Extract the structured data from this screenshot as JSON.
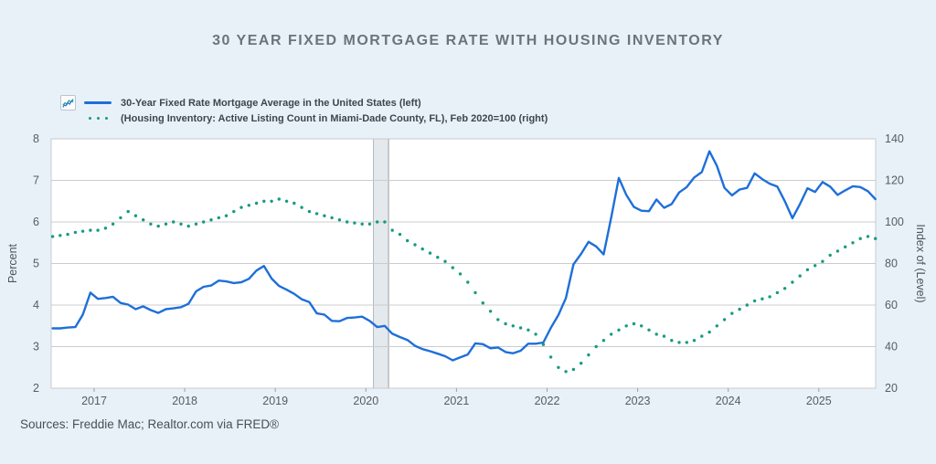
{
  "page": {
    "background": "#e9f1f8",
    "plot_background": "#ffffff"
  },
  "header": {
    "title": "30 YEAR FIXED MORTGAGE RATE WITH HOUSING INVENTORY"
  },
  "legend": {
    "icon": "mini-chart-icon",
    "items": [
      {
        "label": "30-Year Fixed Rate Mortgage Average in the United States (left)",
        "color": "#1e6fd9",
        "style": "solid-line"
      },
      {
        "label": "(Housing Inventory: Active Listing Count in Miami-Dade County, FL), Feb 2020=100 (right)",
        "color": "#169b80",
        "style": "dotted-line"
      }
    ]
  },
  "footer": {
    "sources": "Sources: Freddie Mac; Realtor.com via FRED®"
  },
  "chart_data": {
    "type": "line",
    "title": "30 Year Fixed Mortgage Rate with Housing Inventory",
    "grid_on": true,
    "grid_color": "#cccccc",
    "border_color": "#c7cbd0",
    "tick_text_color": "#545d64",
    "axis_title_color": "#4a5560",
    "x_start_year_fraction": 2016.5417,
    "x_step_years": 0.0833333,
    "x_tick_labels": [
      "2017",
      "2018",
      "2019",
      "2020",
      "2021",
      "2022",
      "2023",
      "2024",
      "2025"
    ],
    "left_axis": {
      "label": "Percent",
      "min": 2,
      "max": 8,
      "ticks": [
        8,
        7,
        6,
        5,
        4,
        3,
        2
      ]
    },
    "right_axis": {
      "label": "Index of (Level)",
      "min": 20,
      "max": 140,
      "ticks": [
        140,
        120,
        100,
        80,
        60,
        40,
        20
      ]
    },
    "recession_band": {
      "from": 2020.083,
      "to": 2020.25,
      "fill": "#e4e9ed",
      "border": "#b2b8be",
      "note": "Feb-Mar 2020 recession shading"
    },
    "series": [
      {
        "name": "30-Year Fixed Rate Mortgage Average in the United States (left)",
        "axis": "left",
        "style": "line",
        "color": "#1e6fd9",
        "values": [
          3.44,
          3.44,
          3.46,
          3.47,
          3.77,
          4.3,
          4.15,
          4.17,
          4.2,
          4.05,
          4.01,
          3.9,
          3.97,
          3.88,
          3.81,
          3.9,
          3.92,
          3.95,
          4.03,
          4.33,
          4.44,
          4.47,
          4.59,
          4.57,
          4.53,
          4.55,
          4.63,
          4.83,
          4.94,
          4.64,
          4.46,
          4.37,
          4.27,
          4.14,
          4.07,
          3.8,
          3.77,
          3.62,
          3.61,
          3.69,
          3.7,
          3.72,
          3.62,
          3.47,
          3.5,
          3.31,
          3.23,
          3.16,
          3.02,
          2.94,
          2.89,
          2.83,
          2.77,
          2.67,
          2.74,
          2.81,
          3.08,
          3.06,
          2.96,
          2.98,
          2.87,
          2.84,
          2.9,
          3.07,
          3.07,
          3.1,
          3.45,
          3.76,
          4.17,
          4.98,
          5.23,
          5.52,
          5.41,
          5.22,
          6.11,
          7.06,
          6.65,
          6.36,
          6.27,
          6.26,
          6.54,
          6.34,
          6.43,
          6.71,
          6.84,
          7.07,
          7.2,
          7.7,
          7.35,
          6.82,
          6.64,
          6.78,
          6.82,
          7.17,
          7.03,
          6.92,
          6.85,
          6.5,
          6.09,
          6.43,
          6.81,
          6.72,
          6.96,
          6.85,
          6.65,
          6.76,
          6.86,
          6.84,
          6.74,
          6.55
        ]
      },
      {
        "name": "Housing Inventory: Active Listing Count in Miami-Dade County, FL, Feb 2020=100 (right)",
        "axis": "right",
        "style": "dots",
        "color": "#169b80",
        "values": [
          93,
          93.5,
          94,
          95,
          95.5,
          96,
          96,
          97,
          99,
          102,
          105,
          103,
          101,
          99,
          98,
          99,
          100,
          99,
          98,
          99,
          100,
          101,
          102,
          103,
          105,
          107,
          108,
          109,
          110,
          110,
          111,
          110,
          109,
          107,
          105,
          104,
          103,
          102,
          101,
          100,
          99.5,
          99,
          99,
          100,
          100,
          96,
          94,
          91,
          89,
          87,
          85,
          83,
          81,
          78,
          75,
          71,
          66,
          61,
          57,
          53,
          51,
          50,
          49,
          48,
          46,
          41,
          35,
          30,
          28,
          29,
          32,
          36,
          40,
          43,
          46,
          48,
          50,
          51,
          50,
          48,
          46,
          45,
          43,
          42,
          42,
          43,
          45,
          47,
          50,
          53,
          56,
          58,
          60,
          62,
          63,
          64,
          66,
          68,
          71,
          74,
          77,
          79,
          81,
          84,
          86,
          88,
          90,
          92,
          93,
          92
        ]
      }
    ]
  }
}
